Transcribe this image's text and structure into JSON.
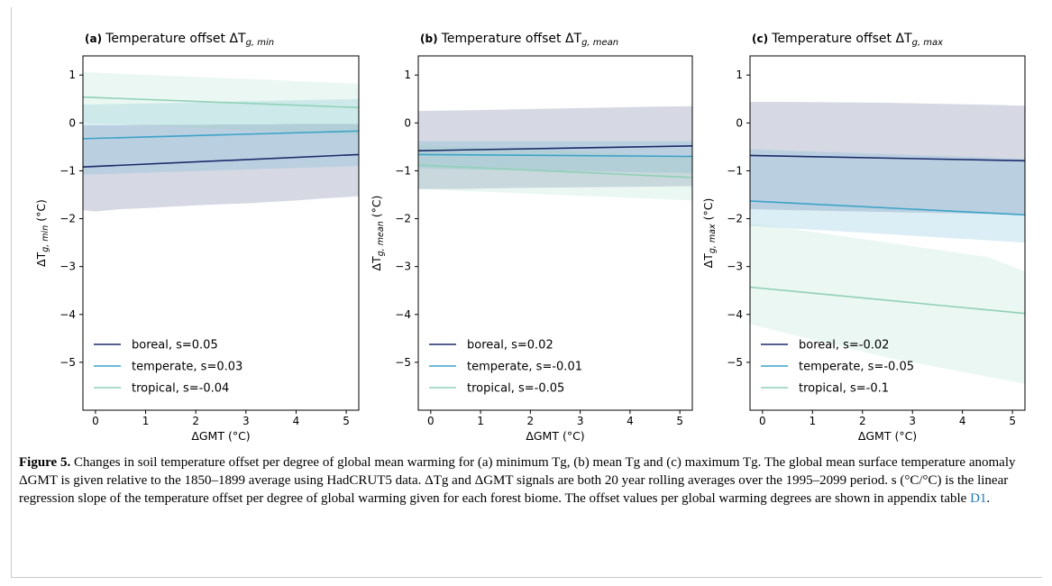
{
  "figure": {
    "caption": {
      "label": "Figure 5.",
      "text": "Changes in soil temperature offset per degree of global mean warming for (a) minimum Tg, (b) mean Tg and (c) maximum Tg. The global mean surface temperature anomaly ΔGMT is given relative to the 1850–1899 average using HadCRUT5 data. ΔTg and ΔGMT signals are both 20 year rolling averages over the 1995–2099 period. s (°C/°C) is the linear regression slope of the temperature offset per degree of global warming given for each forest biome. The offset values per global warming degrees are shown in appendix table ",
      "ref": "D1",
      "end": "."
    }
  },
  "chart_data": [
    {
      "type": "line",
      "panel": "(a)",
      "title": "Temperature offset ΔTg,min",
      "title_main": "Temperature offset ΔT",
      "title_sub": "g, min",
      "xlabel": "ΔGMT (°C)",
      "ylabel": "ΔTg,min (°C)",
      "ylabel_main": "ΔT",
      "ylabel_sub": "g, min",
      "ylabel_unit": " (°C)",
      "xlim": [
        -0.25,
        5.25
      ],
      "ylim": [
        -6.0,
        1.4
      ],
      "xticks": [
        0,
        1,
        2,
        3,
        4,
        5
      ],
      "yticks": [
        1,
        0,
        -1,
        -2,
        -3,
        -4,
        -5
      ],
      "legend_position": "lower-left",
      "series": [
        {
          "name": "boreal, s=0.05",
          "color": "#1b2a6b",
          "x": [
            -0.25,
            5.25
          ],
          "y": [
            -0.92,
            -0.66
          ],
          "band_x": [
            -0.25,
            0.0,
            0.5,
            1.0,
            1.5,
            2.0,
            2.5,
            3.0,
            3.5,
            4.0,
            4.5,
            5.0,
            5.25
          ],
          "band_lower": [
            -1.82,
            -1.85,
            -1.8,
            -1.78,
            -1.75,
            -1.72,
            -1.7,
            -1.68,
            -1.65,
            -1.62,
            -1.58,
            -1.55,
            -1.53
          ],
          "band_upper": [
            -0.05,
            -0.05,
            -0.05,
            -0.04,
            -0.04,
            -0.04,
            -0.03,
            -0.03,
            -0.03,
            -0.02,
            -0.02,
            -0.02,
            -0.02
          ]
        },
        {
          "name": "temperate, s=0.03",
          "color": "#3ba3c9",
          "x": [
            -0.25,
            5.25
          ],
          "y": [
            -0.33,
            -0.17
          ],
          "band_x": [
            -0.25,
            5.25
          ],
          "band_lower": [
            -1.08,
            -0.9
          ],
          "band_upper": [
            0.38,
            0.5
          ]
        },
        {
          "name": "tropical, s=-0.04",
          "color": "#8fd1b6",
          "x": [
            -0.25,
            5.25
          ],
          "y": [
            0.54,
            0.32
          ],
          "band_x": [
            -0.25,
            5.25
          ],
          "band_lower": [
            0.0,
            -0.25
          ],
          "band_upper": [
            1.06,
            0.82
          ]
        }
      ]
    },
    {
      "type": "line",
      "panel": "(b)",
      "title": "Temperature offset ΔTg,mean",
      "title_main": "Temperature offset ΔT",
      "title_sub": "g, mean",
      "xlabel": "ΔGMT (°C)",
      "ylabel": "ΔTg,mean (°C)",
      "ylabel_main": "ΔT",
      "ylabel_sub": "g, mean",
      "ylabel_unit": " (°C)",
      "xlim": [
        -0.25,
        5.25
      ],
      "ylim": [
        -6.0,
        1.4
      ],
      "xticks": [
        0,
        1,
        2,
        3,
        4,
        5
      ],
      "yticks": [
        1,
        0,
        -1,
        -2,
        -3,
        -4,
        -5
      ],
      "legend_position": "lower-left",
      "series": [
        {
          "name": "boreal, s=0.02",
          "color": "#1b2a6b",
          "x": [
            -0.25,
            5.25
          ],
          "y": [
            -0.58,
            -0.48
          ],
          "band_x": [
            -0.25,
            0.5,
            1.5,
            2.5,
            3.5,
            4.5,
            5.25
          ],
          "band_lower": [
            -1.38,
            -1.38,
            -1.36,
            -1.35,
            -1.34,
            -1.33,
            -1.32
          ],
          "band_upper": [
            0.25,
            0.26,
            0.28,
            0.3,
            0.32,
            0.34,
            0.35
          ]
        },
        {
          "name": "temperate, s=-0.01",
          "color": "#3ba3c9",
          "x": [
            -0.25,
            5.25
          ],
          "y": [
            -0.66,
            -0.7
          ],
          "band_x": [
            -0.25,
            5.25
          ],
          "band_lower": [
            -0.95,
            -1.05
          ],
          "band_upper": [
            -0.38,
            -0.38
          ]
        },
        {
          "name": "tropical, s=-0.05",
          "color": "#8fd1b6",
          "x": [
            -0.25,
            5.25
          ],
          "y": [
            -0.88,
            -1.14
          ],
          "band_x": [
            -0.25,
            5.25
          ],
          "band_lower": [
            -1.38,
            -1.62
          ],
          "band_upper": [
            -0.45,
            -0.7
          ]
        }
      ]
    },
    {
      "type": "line",
      "panel": "(c)",
      "title": "Temperature offset ΔTg,max",
      "title_main": "Temperature offset ΔT",
      "title_sub": "g, max",
      "xlabel": "ΔGMT (°C)",
      "ylabel": "ΔTg,max (°C)",
      "ylabel_main": "ΔT",
      "ylabel_sub": "g, max",
      "ylabel_unit": " (°C)",
      "xlim": [
        -0.25,
        5.25
      ],
      "ylim": [
        -6.0,
        1.4
      ],
      "xticks": [
        0,
        1,
        2,
        3,
        4,
        5
      ],
      "yticks": [
        1,
        0,
        -1,
        -2,
        -3,
        -4,
        -5
      ],
      "legend_position": "lower-left",
      "series": [
        {
          "name": "boreal, s=-0.02",
          "color": "#1b2a6b",
          "x": [
            -0.25,
            5.25
          ],
          "y": [
            -0.68,
            -0.79
          ],
          "band_x": [
            -0.25,
            0.5,
            1.5,
            2.5,
            3.5,
            4.5,
            5.25
          ],
          "band_lower": [
            -1.8,
            -1.82,
            -1.84,
            -1.86,
            -1.88,
            -1.9,
            -1.92
          ],
          "band_upper": [
            0.44,
            0.44,
            0.43,
            0.42,
            0.4,
            0.38,
            0.36
          ]
        },
        {
          "name": "temperate, s=-0.05",
          "color": "#3ba3c9",
          "x": [
            -0.25,
            5.25
          ],
          "y": [
            -1.63,
            -1.92
          ],
          "band_x": [
            -0.25,
            5.25
          ],
          "band_lower": [
            -2.15,
            -2.5
          ],
          "band_upper": [
            -0.55,
            -0.75
          ]
        },
        {
          "name": "tropical, s=-0.1",
          "color": "#8fd1b6",
          "x": [
            -0.25,
            5.25
          ],
          "y": [
            -3.43,
            -3.98
          ],
          "band_x": [
            -0.25,
            0.5,
            1.5,
            2.5,
            3.5,
            4.5,
            5.25
          ],
          "band_lower": [
            -4.2,
            -4.4,
            -4.65,
            -4.9,
            -5.1,
            -5.3,
            -5.45
          ],
          "band_upper": [
            -2.1,
            -2.2,
            -2.35,
            -2.5,
            -2.65,
            -2.8,
            -3.1
          ]
        }
      ]
    }
  ]
}
